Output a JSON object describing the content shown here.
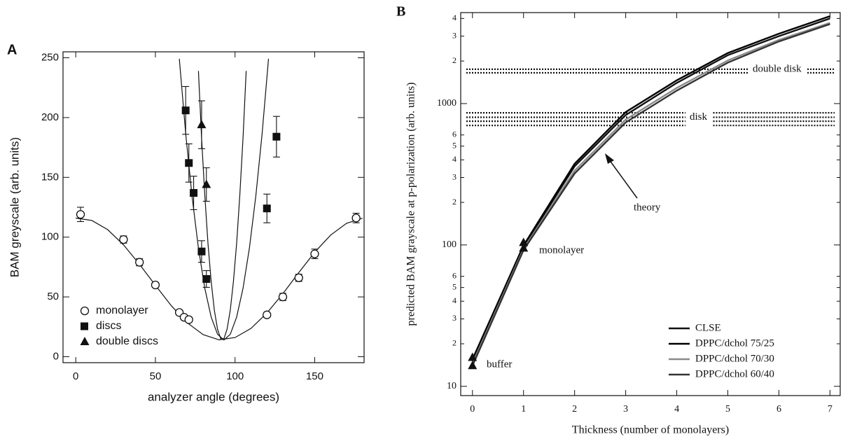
{
  "chart_data": [
    {
      "type": "scatter",
      "title": "A",
      "xlabel": "analyzer angle (degrees)",
      "ylabel": "BAM greyscale (arb. units)",
      "xlim": [
        -8,
        181
      ],
      "ylim": [
        -5,
        255
      ],
      "xticks": [
        0,
        50,
        100,
        150
      ],
      "yticks": [
        0,
        50,
        100,
        150,
        200,
        250
      ],
      "legend": "lower left",
      "series": [
        {
          "name": "monolayer",
          "marker": "circle",
          "color": "#111",
          "x": [
            3,
            30,
            40,
            50,
            65,
            68,
            71,
            120,
            130,
            140,
            150,
            176
          ],
          "values": [
            119,
            98,
            79,
            60,
            37,
            33,
            31,
            35,
            50,
            66,
            86,
            116
          ],
          "errors": [
            6,
            3,
            3,
            2,
            2,
            2,
            2,
            2,
            3,
            3,
            4,
            4
          ]
        },
        {
          "name": "discs",
          "marker": "square",
          "color": "#111",
          "x": [
            69,
            71,
            74,
            79,
            82,
            120,
            126
          ],
          "values": [
            206,
            162,
            137,
            88,
            65,
            124,
            184
          ],
          "errors": [
            20,
            16,
            14,
            9,
            7,
            12,
            17
          ]
        },
        {
          "name": "double discs",
          "marker": "triangle",
          "color": "#111",
          "x": [
            79,
            82
          ],
          "values": [
            194,
            144
          ],
          "errors": [
            20,
            14
          ]
        }
      ],
      "curves": [
        {
          "x": [
            0,
            10,
            20,
            30,
            40,
            50,
            60,
            70,
            80,
            90,
            100,
            110,
            120,
            130,
            140,
            150,
            160,
            170,
            180
          ],
          "values": [
            115.9,
            114.0,
            106.3,
            93.5,
            77.3,
            59.7,
            42.6,
            28.3,
            18.4,
            14.1,
            16.0,
            23.7,
            36.5,
            52.7,
            70.3,
            87.4,
            101.7,
            111.6,
            115.8
          ]
        },
        {
          "x": [
            65,
            69,
            73,
            77,
            81,
            85,
            89,
            93,
            97,
            101,
            105,
            109,
            113,
            117,
            121
          ],
          "values": [
            249.2,
            186.8,
            134,
            90.8,
            57.2,
            33.2,
            18.8,
            14,
            18.8,
            33.2,
            57.2,
            90.8,
            134,
            186.8,
            249.2
          ]
        },
        {
          "x": [
            77,
            79,
            81,
            83,
            85,
            87,
            89,
            91,
            93,
            95,
            97,
            99,
            101,
            103,
            105,
            107
          ],
          "values": [
            239,
            183,
            135,
            95,
            63,
            39,
            23,
            15,
            15,
            23,
            39,
            63,
            95,
            135,
            183,
            239
          ]
        }
      ]
    },
    {
      "type": "line",
      "title": "B",
      "xlabel": "Thickness (number of monolayers)",
      "ylabel": "predicted BAM grayscale at p-polarization (arb. units)",
      "xlim": [
        -0.23,
        7.2
      ],
      "ylim": [
        8.6,
        4400
      ],
      "log": true,
      "xticks": [
        0,
        1,
        2,
        3,
        4,
        5,
        6,
        7
      ],
      "yticks": [
        10,
        {
          "value": 20,
          "label": "2"
        },
        {
          "value": 30,
          "label": "3"
        },
        {
          "value": 40,
          "label": "4"
        },
        {
          "value": 50,
          "label": "5"
        },
        {
          "value": 60,
          "label": "6"
        },
        100,
        {
          "value": 200,
          "label": "2"
        },
        {
          "value": 300,
          "label": "3"
        },
        {
          "value": 400,
          "label": "4"
        },
        {
          "value": 500,
          "label": "5"
        },
        {
          "value": 600,
          "label": "6"
        },
        1000,
        {
          "value": 2000,
          "label": "2"
        },
        {
          "value": 3000,
          "label": "3"
        },
        {
          "value": 4000,
          "label": "4"
        }
      ],
      "legend": "lower right",
      "series": [
        {
          "name": "CLSE",
          "color": "#111",
          "x": [
            0,
            1,
            2,
            3,
            4,
            5,
            6,
            7
          ],
          "values": [
            15,
            97,
            360,
            830,
            1400,
            2200,
            3000,
            4000
          ]
        },
        {
          "name": "DPPC/dchol  75/25",
          "color": "#000",
          "x": [
            0,
            1,
            2,
            3,
            4,
            5,
            6,
            7
          ],
          "values": [
            15.5,
            99,
            375,
            870,
            1460,
            2280,
            3120,
            4150
          ]
        },
        {
          "name": "DPPC/dchol  70/30",
          "color": "#8a8a8a",
          "x": [
            0,
            1,
            2,
            3,
            4,
            5,
            6,
            7
          ],
          "values": [
            14.5,
            94,
            335,
            770,
            1290,
            2020,
            2820,
            3720
          ]
        },
        {
          "name": "DPPC/dchol  60/40",
          "color": "#333",
          "x": [
            0,
            1,
            2,
            3,
            4,
            5,
            6,
            7
          ],
          "values": [
            14,
            92,
            320,
            735,
            1235,
            1950,
            2750,
            3650
          ]
        }
      ],
      "markers": {
        "x": [
          0,
          0,
          1,
          1
        ],
        "values": [
          14,
          16,
          95,
          104
        ]
      },
      "bands": [
        {
          "label": "double disk",
          "values": [
            1650,
            1750
          ]
        },
        {
          "label": "disk",
          "values": [
            700,
            750,
            800,
            860
          ]
        }
      ],
      "annotations": [
        "theory",
        "monolayer",
        "buffer"
      ]
    }
  ]
}
